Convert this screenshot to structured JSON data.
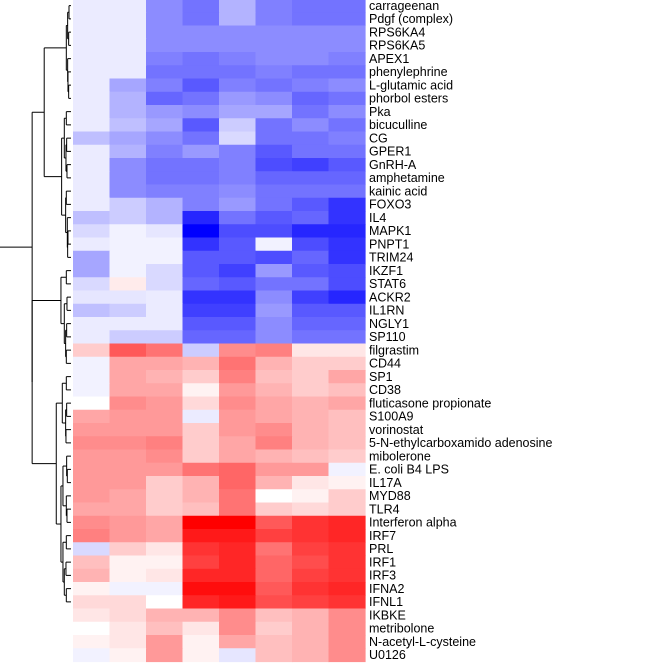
{
  "chart_data": {
    "type": "heatmap",
    "title": "",
    "xlabel": "",
    "ylabel": "",
    "color_scale": {
      "low": "#0000ff",
      "mid": "#ffffff",
      "high": "#ff0000",
      "vmin": -1,
      "vmax": 1
    },
    "rows": [
      "carrageenan",
      "Pdgf (complex)",
      "RPS6KA4",
      "RPS6KA5",
      "APEX1",
      "phenylephrine",
      "L-glutamic acid",
      "phorbol esters",
      "Pka",
      "bicuculline",
      "CG",
      "GPER1",
      "GnRH-A",
      "amphetamine",
      "kainic acid",
      "FOXO3",
      "IL4",
      "MAPK1",
      "PNPT1",
      "TRIM24",
      "IKZF1",
      "STAT6",
      "ACKR2",
      "IL1RN",
      "NGLY1",
      "SP110",
      "filgrastim",
      "CD44",
      "SP1",
      "CD38",
      "fluticasone propionate",
      "S100A9",
      "vorinostat",
      "5-N-ethylcarboxamido adenosine",
      "mibolerone",
      "E. coli B4 LPS",
      "IL17A",
      "MYD88",
      "TLR4",
      "Interferon alpha",
      "IRF7",
      "PRL",
      "IRF1",
      "IRF3",
      "IFNA2",
      "IFNL1",
      "IKBKE",
      "metribolone",
      "N-acetyl-L-cysteine",
      "U0126"
    ],
    "values": [
      [
        -0.08,
        -0.08,
        -0.45,
        -0.55,
        -0.3,
        -0.5,
        -0.55,
        -0.55
      ],
      [
        -0.08,
        -0.08,
        -0.45,
        -0.55,
        -0.3,
        -0.5,
        -0.55,
        -0.55
      ],
      [
        -0.08,
        -0.08,
        -0.45,
        -0.45,
        -0.45,
        -0.45,
        -0.45,
        -0.45
      ],
      [
        -0.08,
        -0.08,
        -0.45,
        -0.45,
        -0.45,
        -0.45,
        -0.45,
        -0.45
      ],
      [
        -0.08,
        -0.08,
        -0.5,
        -0.55,
        -0.5,
        -0.45,
        -0.45,
        -0.5
      ],
      [
        -0.08,
        -0.08,
        -0.55,
        -0.55,
        -0.55,
        -0.5,
        -0.55,
        -0.55
      ],
      [
        -0.08,
        -0.35,
        -0.5,
        -0.65,
        -0.5,
        -0.55,
        -0.5,
        -0.45
      ],
      [
        -0.08,
        -0.3,
        -0.6,
        -0.55,
        -0.4,
        -0.45,
        -0.6,
        -0.55
      ],
      [
        -0.08,
        -0.3,
        -0.4,
        -0.45,
        -0.35,
        -0.35,
        -0.55,
        -0.45
      ],
      [
        -0.08,
        -0.25,
        -0.35,
        -0.65,
        -0.2,
        -0.55,
        -0.45,
        -0.55
      ],
      [
        -0.25,
        -0.35,
        -0.45,
        -0.55,
        -0.15,
        -0.55,
        -0.55,
        -0.5
      ],
      [
        -0.08,
        -0.3,
        -0.5,
        -0.4,
        -0.5,
        -0.65,
        -0.55,
        -0.55
      ],
      [
        -0.08,
        -0.45,
        -0.55,
        -0.55,
        -0.5,
        -0.7,
        -0.75,
        -0.65
      ],
      [
        -0.08,
        -0.45,
        -0.55,
        -0.55,
        -0.5,
        -0.6,
        -0.6,
        -0.6
      ],
      [
        -0.08,
        -0.45,
        -0.5,
        -0.5,
        -0.45,
        -0.55,
        -0.55,
        -0.55
      ],
      [
        -0.08,
        -0.2,
        -0.3,
        -0.5,
        -0.4,
        -0.55,
        -0.65,
        -0.8
      ],
      [
        -0.25,
        -0.2,
        -0.3,
        -0.85,
        -0.55,
        -0.65,
        -0.6,
        -0.8
      ],
      [
        -0.15,
        -0.05,
        -0.1,
        -1.0,
        -0.7,
        -0.7,
        -0.85,
        -0.85
      ],
      [
        -0.08,
        -0.05,
        -0.05,
        -0.8,
        -0.65,
        -0.05,
        -0.7,
        -0.8
      ],
      [
        -0.35,
        -0.05,
        -0.05,
        -0.65,
        -0.65,
        -0.7,
        -0.6,
        -0.8
      ],
      [
        -0.35,
        -0.05,
        -0.15,
        -0.65,
        -0.75,
        -0.4,
        -0.65,
        -0.7
      ],
      [
        -0.15,
        0.08,
        -0.15,
        -0.6,
        -0.65,
        -0.55,
        -0.55,
        -0.7
      ],
      [
        -0.1,
        -0.1,
        -0.08,
        -0.8,
        -0.8,
        -0.45,
        -0.75,
        -0.85
      ],
      [
        -0.25,
        -0.2,
        -0.08,
        -0.75,
        -0.75,
        -0.4,
        -0.65,
        -0.65
      ],
      [
        -0.08,
        -0.08,
        -0.08,
        -0.65,
        -0.65,
        -0.45,
        -0.6,
        -0.6
      ],
      [
        -0.08,
        -0.2,
        -0.2,
        -0.6,
        -0.6,
        -0.45,
        -0.55,
        -0.55
      ],
      [
        0.2,
        0.65,
        0.55,
        -0.2,
        0.45,
        0.5,
        0.1,
        0.1
      ],
      [
        -0.05,
        0.35,
        0.35,
        0.3,
        0.55,
        0.3,
        0.2,
        0.2
      ],
      [
        -0.05,
        0.35,
        0.3,
        0.2,
        0.5,
        0.25,
        0.2,
        0.35
      ],
      [
        -0.05,
        0.35,
        0.35,
        0.05,
        0.4,
        0.3,
        0.2,
        0.25
      ],
      [
        0.0,
        0.45,
        0.4,
        0.15,
        0.45,
        0.35,
        0.3,
        0.35
      ],
      [
        0.35,
        0.4,
        0.4,
        -0.08,
        0.4,
        0.35,
        0.3,
        0.25
      ],
      [
        0.4,
        0.4,
        0.4,
        0.2,
        0.4,
        0.45,
        0.3,
        0.25
      ],
      [
        0.45,
        0.45,
        0.5,
        0.2,
        0.35,
        0.5,
        0.3,
        0.25
      ],
      [
        0.4,
        0.4,
        0.45,
        0.2,
        0.35,
        0.3,
        0.25,
        0.2
      ],
      [
        0.4,
        0.4,
        0.4,
        0.55,
        0.6,
        0.4,
        0.4,
        -0.05
      ],
      [
        0.4,
        0.4,
        0.2,
        0.3,
        0.6,
        0.3,
        0.1,
        0.05
      ],
      [
        0.4,
        0.35,
        0.2,
        0.3,
        0.55,
        0.0,
        0.05,
        0.2
      ],
      [
        0.35,
        0.35,
        0.2,
        0.25,
        0.55,
        0.2,
        0.15,
        0.2
      ],
      [
        0.45,
        0.4,
        0.35,
        1.0,
        1.0,
        0.65,
        0.8,
        0.85
      ],
      [
        0.5,
        0.4,
        0.35,
        0.9,
        0.9,
        0.75,
        0.8,
        0.85
      ],
      [
        -0.15,
        0.2,
        0.1,
        0.8,
        0.85,
        0.55,
        0.75,
        0.8
      ],
      [
        0.25,
        0.05,
        0.05,
        0.75,
        0.85,
        0.6,
        0.7,
        0.8
      ],
      [
        0.3,
        0.05,
        0.1,
        0.85,
        0.85,
        0.6,
        0.75,
        0.8
      ],
      [
        0.05,
        -0.05,
        -0.05,
        0.95,
        0.95,
        0.65,
        0.8,
        0.85
      ],
      [
        0.15,
        0.15,
        0.0,
        0.85,
        0.9,
        0.7,
        0.75,
        0.8
      ],
      [
        0.1,
        0.15,
        0.3,
        0.3,
        0.45,
        0.25,
        0.3,
        0.45
      ],
      [
        0.0,
        0.1,
        0.25,
        0.1,
        0.45,
        0.2,
        0.3,
        0.45
      ],
      [
        0.05,
        0.1,
        0.4,
        0.05,
        0.35,
        0.25,
        0.3,
        0.45
      ],
      [
        -0.05,
        0.05,
        0.4,
        0.05,
        -0.1,
        0.25,
        0.3,
        0.45
      ]
    ]
  }
}
